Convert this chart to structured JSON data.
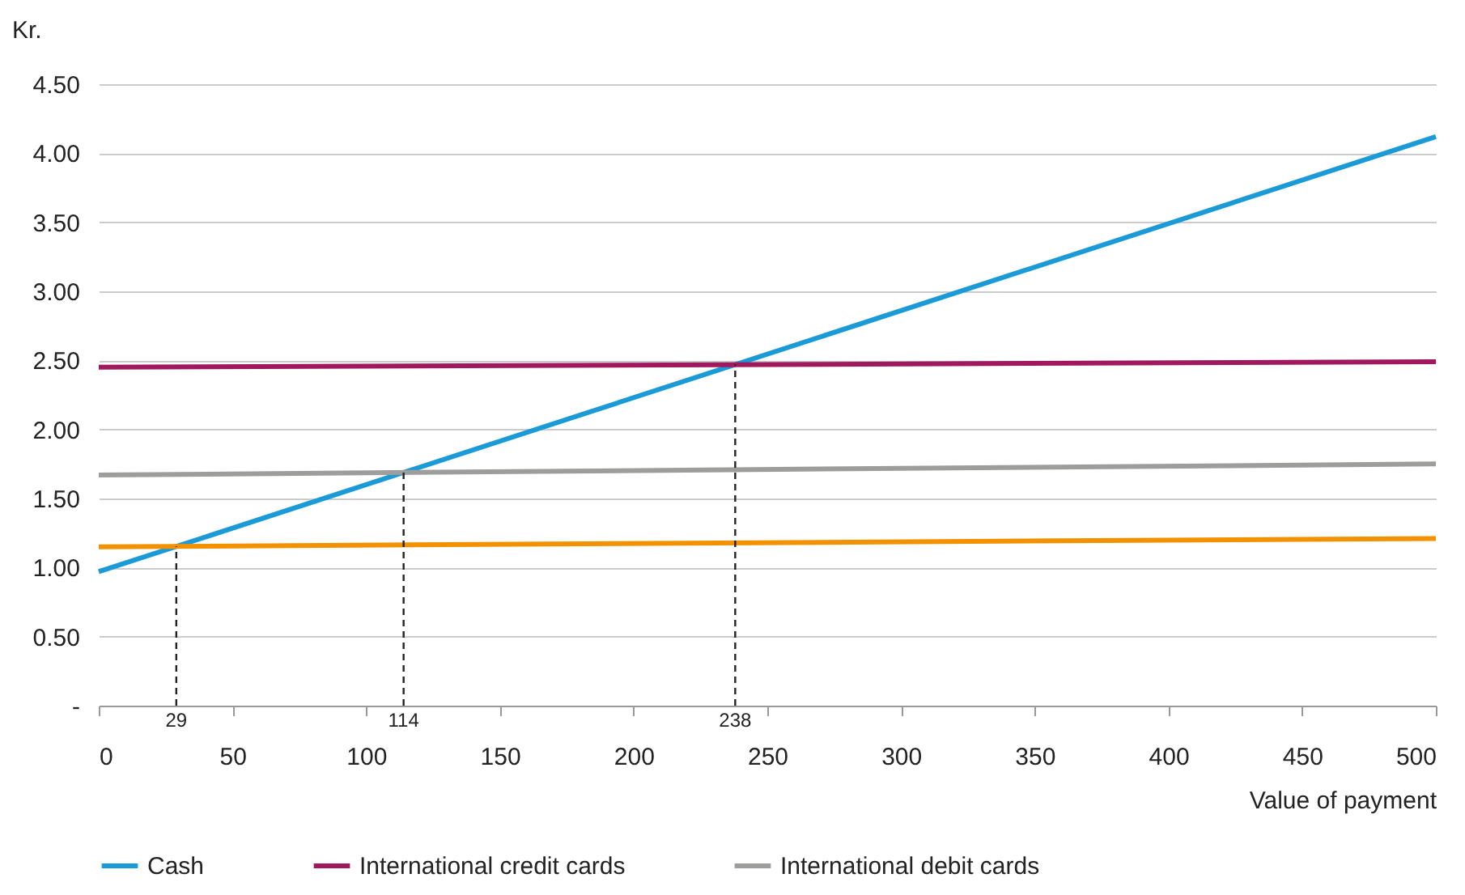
{
  "chart_data": {
    "type": "line",
    "xlabel": "Value of payment",
    "ylabel": "Kr.",
    "x": [
      0,
      500
    ],
    "series": [
      {
        "name": "Cash",
        "color": "#1a9ad6",
        "values": [
          0.97,
          4.12
        ]
      },
      {
        "color": "#f39200",
        "values": [
          1.15,
          1.21
        ]
      },
      {
        "name": "International credit cards",
        "color": "#a0185e",
        "values": [
          2.45,
          2.49
        ]
      },
      {
        "name": "International debit cards",
        "color": "#9d9d9c",
        "values": [
          1.67,
          1.75
        ]
      }
    ],
    "xlim": [
      0,
      500
    ],
    "xticks": [
      0,
      50,
      100,
      150,
      200,
      250,
      300,
      350,
      400,
      450,
      500
    ],
    "ylim": [
      0,
      4.5
    ],
    "yticks": [
      {
        "value": 0,
        "label": "-"
      },
      {
        "value": 0.5,
        "label": "0.50"
      },
      {
        "value": 1,
        "label": "1.00"
      },
      {
        "value": 1.5,
        "label": "1.50"
      },
      {
        "value": 2,
        "label": "2.00"
      },
      {
        "value": 2.5,
        "label": "2.50"
      },
      {
        "value": 3,
        "label": "3.00"
      },
      {
        "value": 3.5,
        "label": "3.50"
      },
      {
        "value": 4,
        "label": "4.00"
      },
      {
        "value": 4.5,
        "label": "4.50"
      }
    ],
    "ref_lines": [
      {
        "axis": "x",
        "value": 29,
        "label": "29",
        "line_style": "dashed"
      },
      {
        "axis": "x",
        "value": 114,
        "label": "114",
        "line_style": "dashed"
      },
      {
        "axis": "x",
        "value": 238,
        "label": "238",
        "line_style": "dashed"
      }
    ],
    "grid": "y",
    "legend": "bottom",
    "marker": "none",
    "line_style": "solid"
  }
}
